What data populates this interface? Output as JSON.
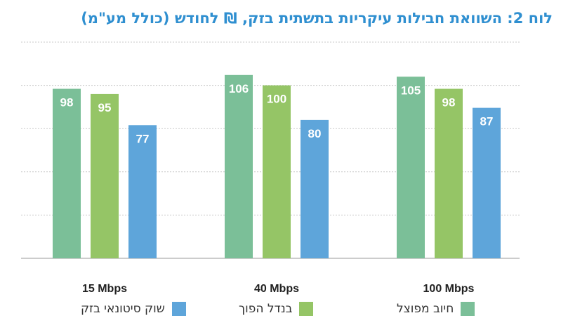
{
  "title": "לוח 2: השוואת חבילות עיקריות בתשתית בזק, ₪ לחודש (כולל מע\"מ)",
  "chart_data": {
    "type": "bar",
    "title": "לוח 2: השוואת חבילות עיקריות בתשתית בזק, ₪ לחודש (כולל מע\"מ)",
    "categories": [
      "15 Mbps",
      "40 Mbps",
      "100 Mbps"
    ],
    "series": [
      {
        "name": "חיוב מפוצל",
        "color": "#7bbf98",
        "values": [
          98,
          106,
          105
        ]
      },
      {
        "name": "בנדל הפוך",
        "color": "#95c566",
        "values": [
          95,
          100,
          98
        ]
      },
      {
        "name": "שוק סיטונאי בזק",
        "color": "#5ea5da",
        "values": [
          77,
          80,
          87
        ]
      }
    ],
    "ylim": [
      0,
      125
    ],
    "grid": true,
    "legend_position": "bottom",
    "xlabel": "",
    "ylabel": ""
  }
}
